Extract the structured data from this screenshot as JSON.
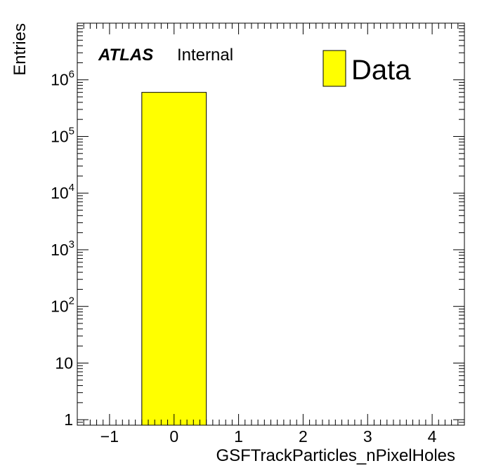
{
  "chart_data": {
    "type": "bar",
    "title": "",
    "xlabel": "GSFTrackParticles_nPixelHoles",
    "ylabel": "Entries",
    "x_scale": "linear",
    "y_scale": "log",
    "xlim": [
      -1.5,
      4.5
    ],
    "ylim": [
      0.8,
      10000000
    ],
    "bin_edges": [
      -0.5,
      0.5
    ],
    "series": [
      {
        "name": "Data",
        "values": [
          600000
        ],
        "color": "#ffff00"
      }
    ],
    "x_ticks": [
      {
        "value": -1,
        "label": "−1"
      },
      {
        "value": 0,
        "label": "0"
      },
      {
        "value": 1,
        "label": "1"
      },
      {
        "value": 2,
        "label": "2"
      },
      {
        "value": 3,
        "label": "3"
      },
      {
        "value": 4,
        "label": "4"
      }
    ],
    "y_ticks": [
      {
        "value": 1,
        "base": "1",
        "exp": ""
      },
      {
        "value": 10,
        "base": "10",
        "exp": ""
      },
      {
        "value": 100,
        "base": "10",
        "exp": "2"
      },
      {
        "value": 1000,
        "base": "10",
        "exp": "3"
      },
      {
        "value": 10000,
        "base": "10",
        "exp": "4"
      },
      {
        "value": 100000,
        "base": "10",
        "exp": "5"
      },
      {
        "value": 1000000,
        "base": "10",
        "exp": "6"
      }
    ],
    "annotations": {
      "experiment": "ATLAS",
      "status": "Internal"
    },
    "legend": {
      "position": "top-right",
      "entries": [
        {
          "label": "Data",
          "color": "#ffff00"
        }
      ]
    },
    "grid": false
  }
}
